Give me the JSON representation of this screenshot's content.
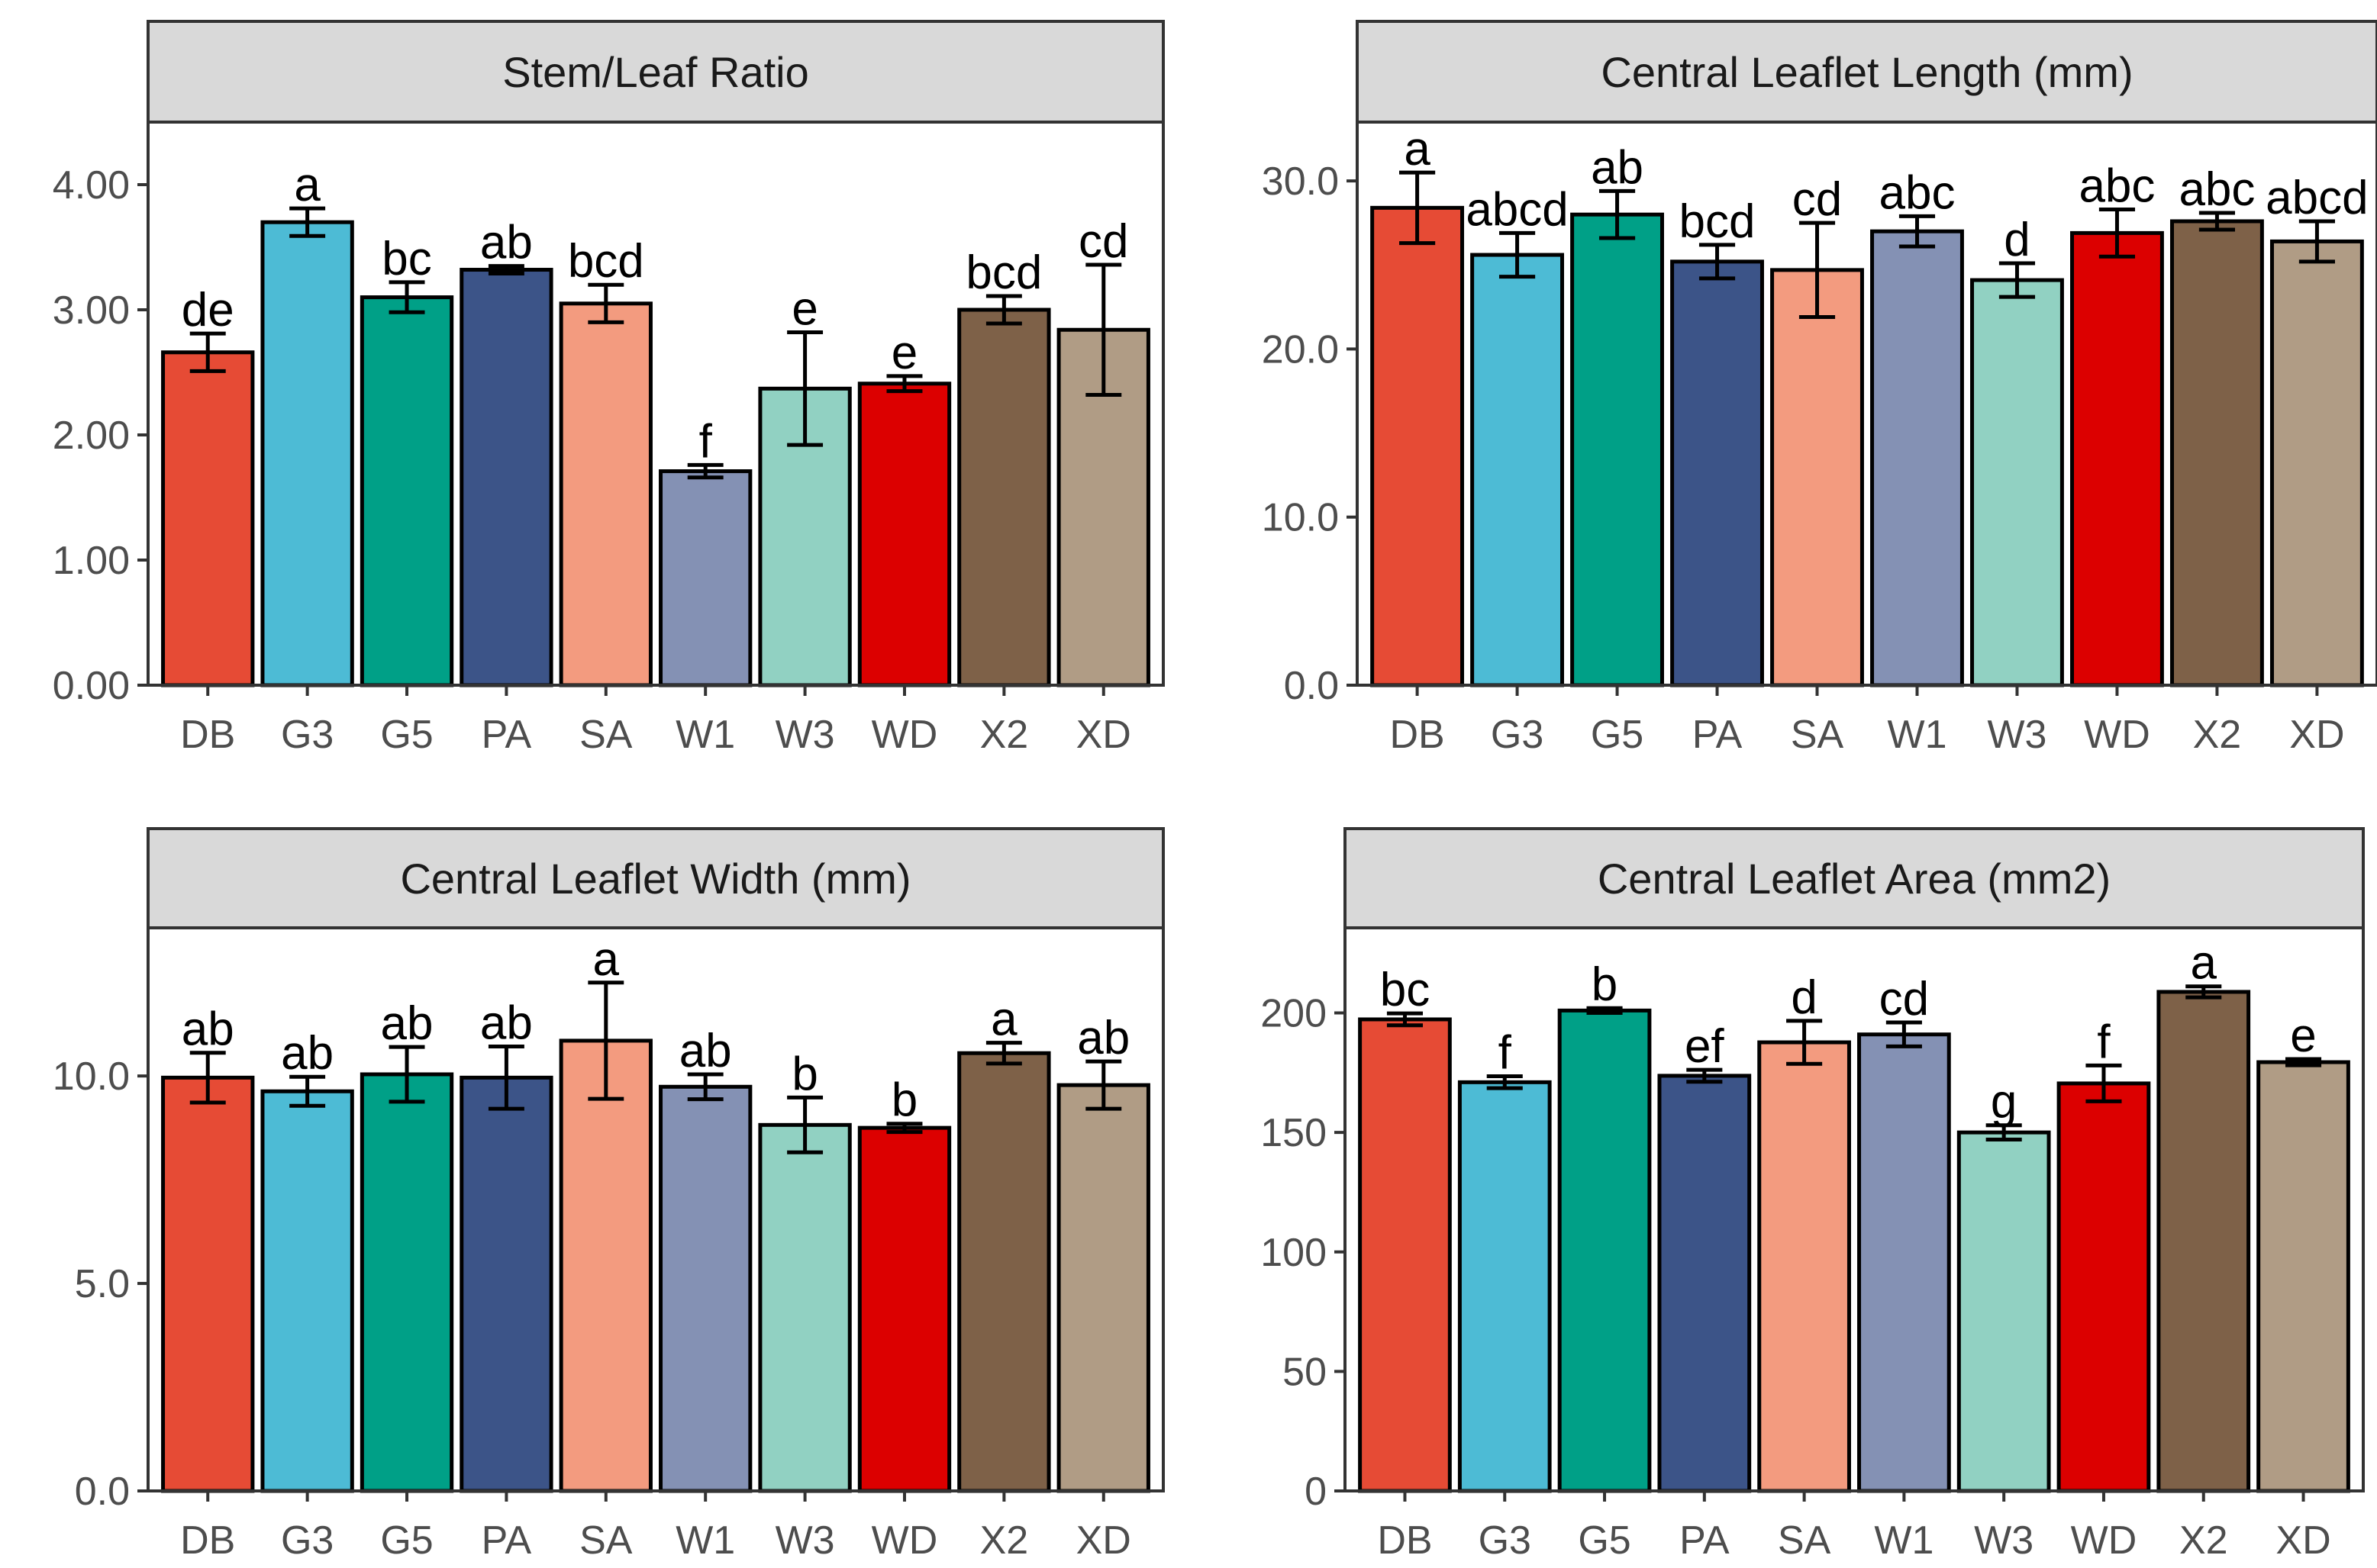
{
  "chart_data": [
    {
      "type": "bar",
      "title": "Stem/Leaf Ratio",
      "categories": [
        "DB",
        "G3",
        "G5",
        "PA",
        "SA",
        "W1",
        "W3",
        "WD",
        "X2",
        "XD"
      ],
      "values": [
        2.66,
        3.7,
        3.1,
        3.32,
        3.05,
        1.71,
        2.37,
        2.41,
        3.0,
        2.84
      ],
      "errors": [
        0.15,
        0.11,
        0.12,
        0.03,
        0.15,
        0.05,
        0.45,
        0.06,
        0.11,
        0.52
      ],
      "letters": [
        "de",
        "a",
        "bc",
        "ab",
        "bcd",
        "f",
        "e",
        "e",
        "bcd",
        "cd"
      ],
      "yticks": [
        0,
        1,
        2,
        3,
        4
      ],
      "ytick_labels": [
        "0.00",
        "1.00",
        "2.00",
        "3.00",
        "4.00"
      ],
      "ylim": [
        0,
        4.5
      ]
    },
    {
      "type": "bar",
      "title": "Central Leaflet Length (mm)",
      "categories": [
        "DB",
        "G3",
        "G5",
        "PA",
        "SA",
        "W1",
        "W3",
        "WD",
        "X2",
        "XD"
      ],
      "values": [
        28.4,
        25.6,
        28.0,
        25.2,
        24.7,
        27.0,
        24.1,
        26.9,
        27.6,
        26.4
      ],
      "errors": [
        2.1,
        1.3,
        1.4,
        1.0,
        2.8,
        0.9,
        1.0,
        1.4,
        0.5,
        1.2
      ],
      "letters": [
        "a",
        "abcd",
        "ab",
        "bcd",
        "cd",
        "abc",
        "d",
        "abc",
        "abc",
        "abcd"
      ],
      "yticks": [
        0,
        10,
        20,
        30
      ],
      "ytick_labels": [
        "0.0",
        "10.0",
        "20.0",
        "30.0"
      ],
      "ylim": [
        0,
        33.5
      ]
    },
    {
      "type": "bar",
      "title": "Central Leaflet Width (mm)",
      "categories": [
        "DB",
        "G3",
        "G5",
        "PA",
        "SA",
        "W1",
        "W3",
        "WD",
        "X2",
        "XD"
      ],
      "values": [
        9.96,
        9.63,
        10.04,
        9.96,
        10.85,
        9.74,
        8.82,
        8.75,
        10.55,
        9.78
      ],
      "errors": [
        0.6,
        0.35,
        0.66,
        0.75,
        1.4,
        0.3,
        0.66,
        0.1,
        0.25,
        0.57
      ],
      "letters": [
        "ab",
        "ab",
        "ab",
        "ab",
        "a",
        "ab",
        "b",
        "b",
        "a",
        "ab"
      ],
      "yticks": [
        0,
        5,
        10
      ],
      "ytick_labels": [
        "0.0",
        "5.0",
        "10.0"
      ],
      "ylim": [
        0,
        13.57
      ]
    },
    {
      "type": "bar",
      "title": "Central Leaflet Area (mm2)",
      "categories": [
        "DB",
        "G3",
        "G5",
        "PA",
        "SA",
        "W1",
        "W3",
        "WD",
        "X2",
        "XD"
      ],
      "values": [
        197.3,
        171,
        201,
        173.7,
        187.7,
        191,
        150,
        170.5,
        208.8,
        179.4
      ],
      "errors": [
        2.5,
        2.5,
        1,
        2.5,
        9,
        5,
        3,
        7.5,
        2.3,
        1.3
      ],
      "letters": [
        "bc",
        "f",
        "b",
        "ef",
        "d",
        "cd",
        "g",
        "f",
        "a",
        "e"
      ],
      "yticks": [
        0,
        50,
        100,
        150,
        200
      ],
      "ytick_labels": [
        "0",
        "50",
        "100",
        "150",
        "200"
      ],
      "ylim": [
        0,
        235.6
      ]
    }
  ],
  "colors": [
    "#E64B35",
    "#4DBBD5",
    "#00A087",
    "#3C5488",
    "#F39B7F",
    "#8491B4",
    "#91D1C2",
    "#DC0000",
    "#7E6148",
    "#B09C85"
  ]
}
